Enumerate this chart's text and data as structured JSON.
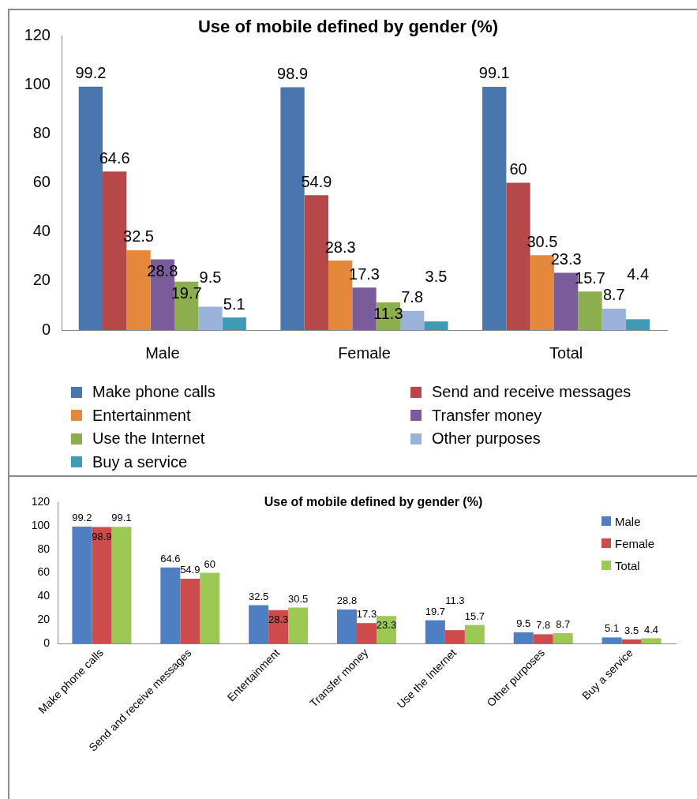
{
  "chart_data": [
    {
      "type": "bar",
      "title": "Use of mobile defined by gender (%)",
      "categories": [
        "Male",
        "Female",
        "Total"
      ],
      "series": [
        {
          "name": "Make phone calls",
          "color": "#4a76b0",
          "values": [
            99.2,
            98.9,
            99.1
          ]
        },
        {
          "name": "Send and receive messages",
          "color": "#b6484a",
          "values": [
            64.6,
            54.9,
            60
          ]
        },
        {
          "name": "Entertainment",
          "color": "#e4883c",
          "values": [
            32.5,
            28.3,
            30.5
          ]
        },
        {
          "name": "Transfer money",
          "color": "#7a5c9b",
          "values": [
            28.8,
            17.3,
            23.3
          ]
        },
        {
          "name": "Use the Internet",
          "color": "#8cae4e",
          "values": [
            19.7,
            11.3,
            15.7
          ]
        },
        {
          "name": "Other purposes",
          "color": "#9bb3da",
          "values": [
            9.5,
            7.8,
            8.7
          ]
        },
        {
          "name": "Buy a service",
          "color": "#3f9bb5",
          "values": [
            5.1,
            3.5,
            4.4
          ]
        }
      ],
      "ylim": [
        0,
        120
      ],
      "yticks": [
        0,
        20,
        40,
        60,
        80,
        100,
        120
      ],
      "data_labels": true,
      "legend": "bottom"
    },
    {
      "type": "bar",
      "title": "Use of mobile defined by gender (%)",
      "categories": [
        "Make phone calls",
        "Send and receive messages",
        "Entertainment",
        "Transfer money",
        "Use the Internet",
        "Other purposes",
        "Buy a service"
      ],
      "series": [
        {
          "name": "Male",
          "color": "#4f7fc2",
          "values": [
            99.2,
            64.6,
            32.5,
            28.8,
            19.7,
            9.5,
            5.1
          ]
        },
        {
          "name": "Female",
          "color": "#cc4b4b",
          "values": [
            98.9,
            54.9,
            28.3,
            17.3,
            11.3,
            7.8,
            3.5
          ]
        },
        {
          "name": "Total",
          "color": "#9cc955",
          "values": [
            99.1,
            60,
            30.5,
            23.3,
            15.7,
            8.7,
            4.4
          ]
        }
      ],
      "ylim": [
        0,
        120
      ],
      "yticks": [
        0,
        20,
        40,
        60,
        80,
        100,
        120
      ],
      "data_labels": true,
      "legend": "top right"
    }
  ]
}
